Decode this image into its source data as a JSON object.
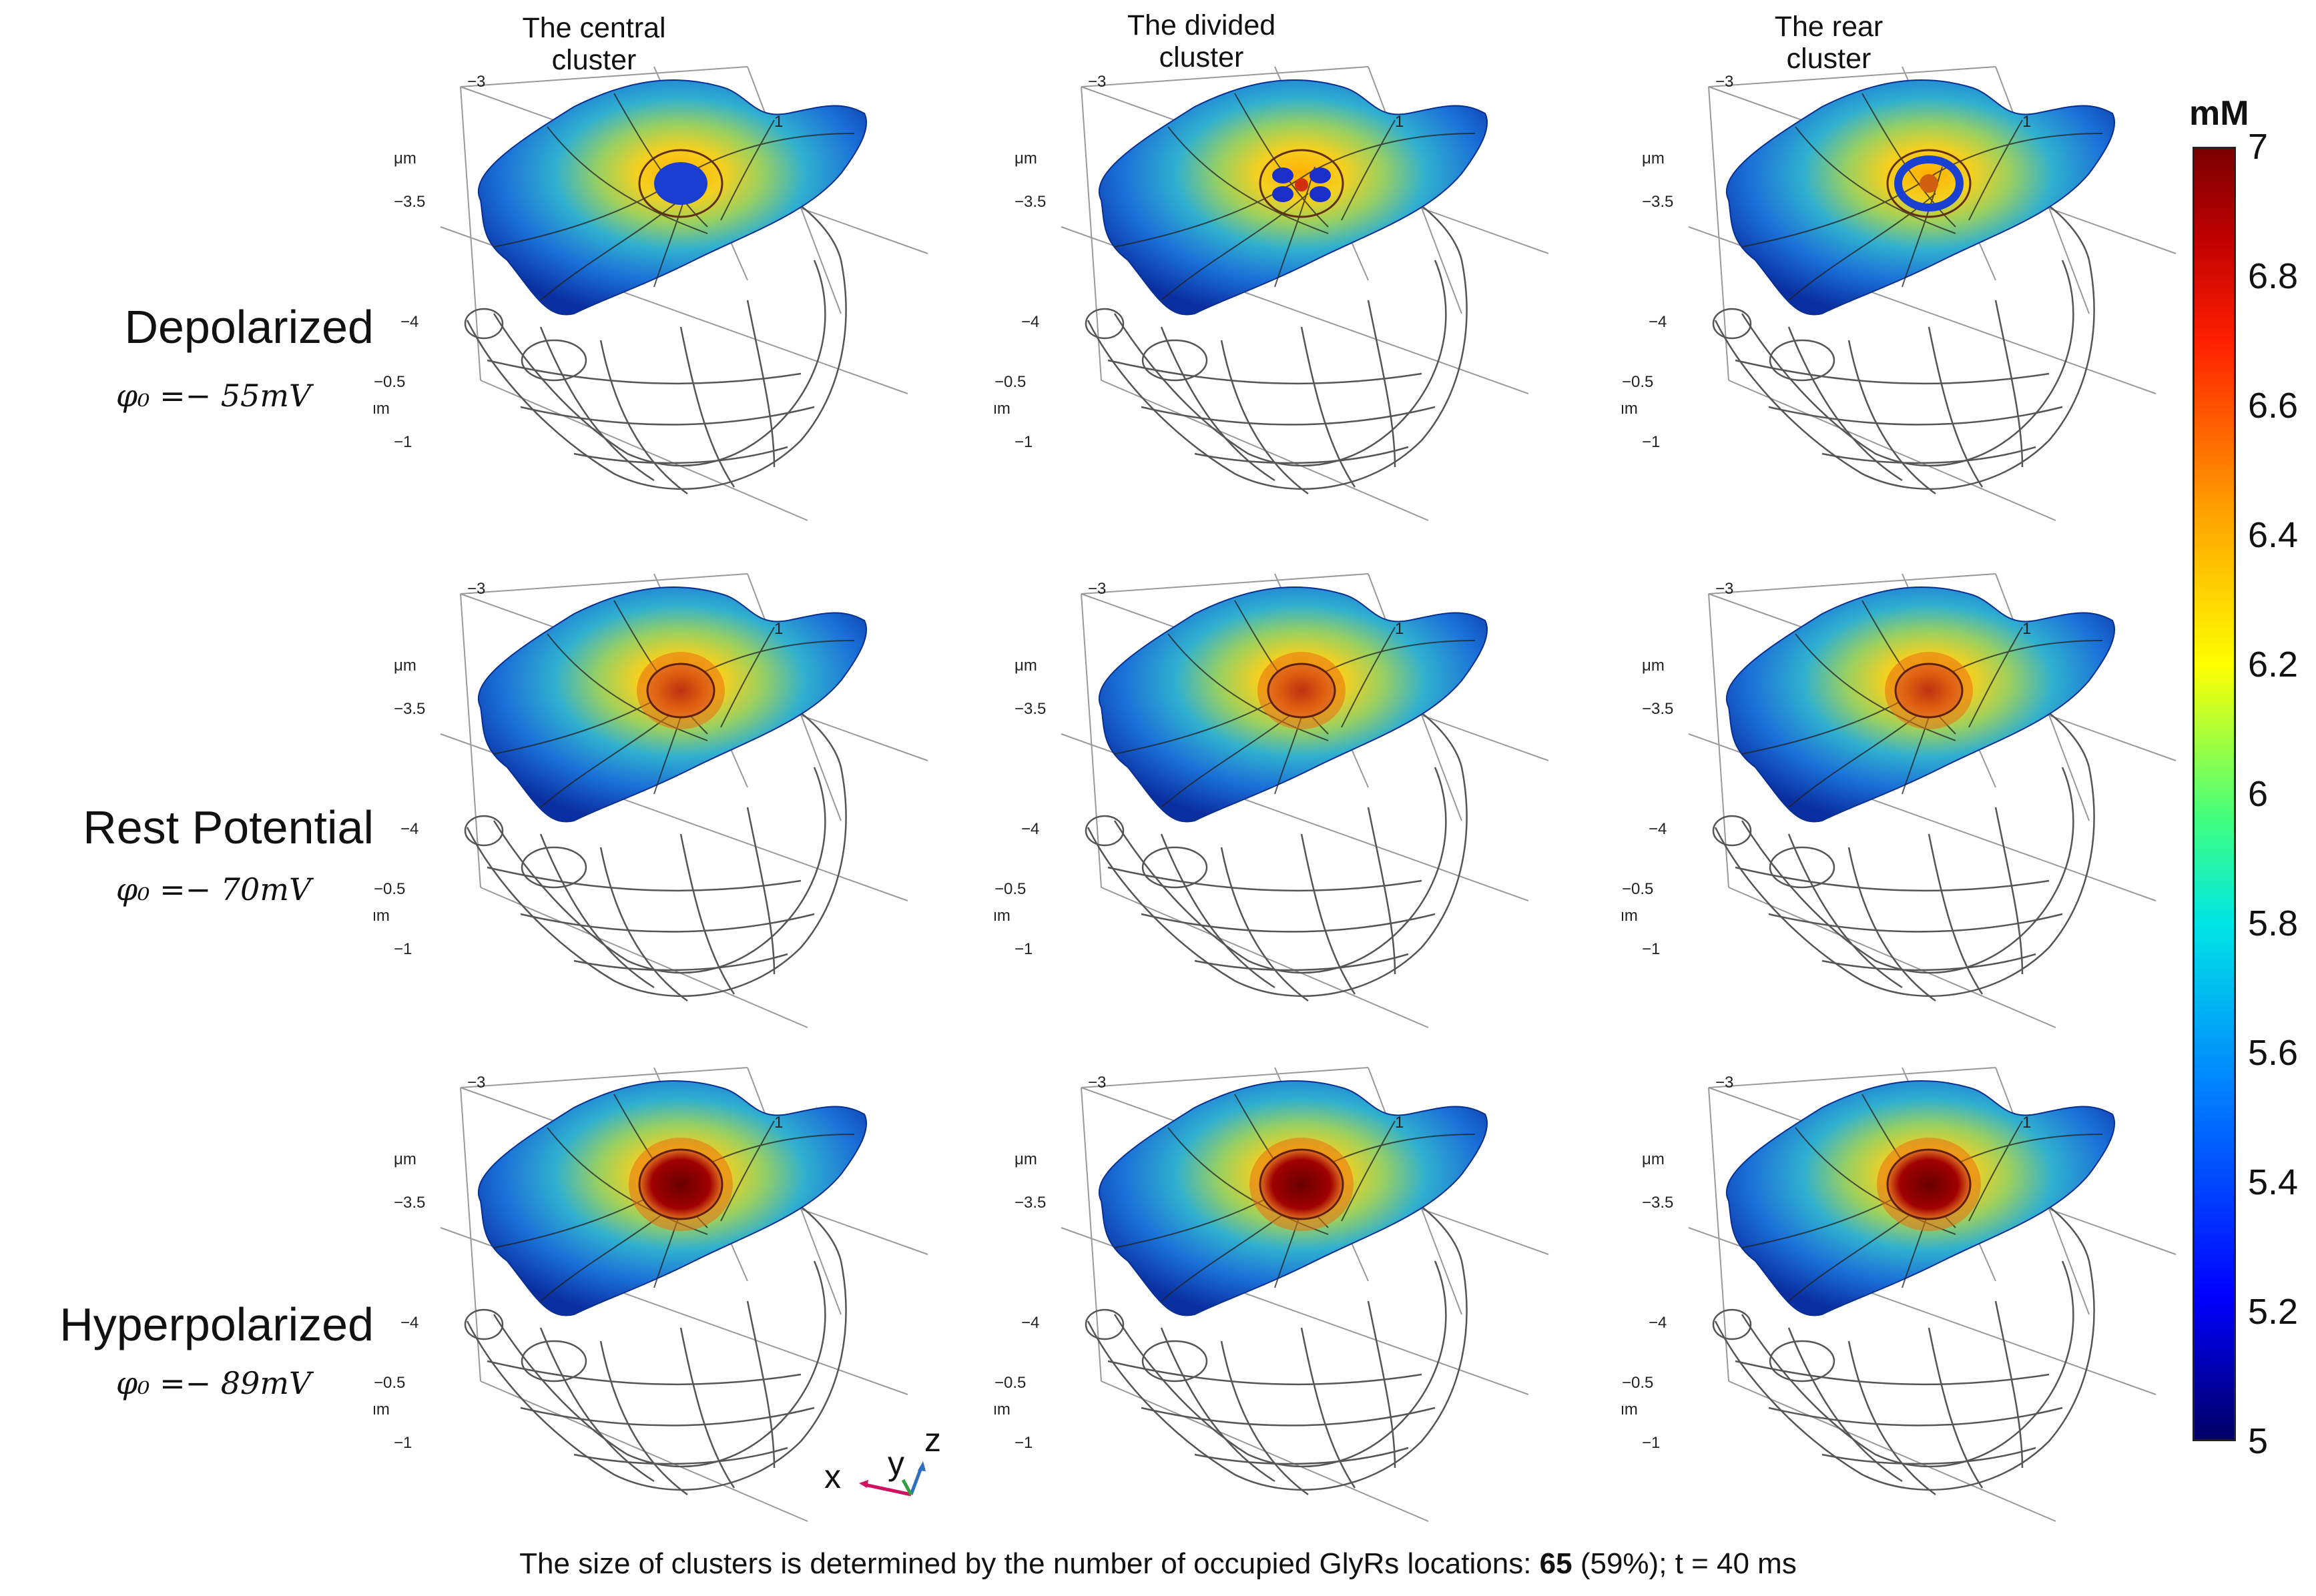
{
  "columns": [
    {
      "line1": "The central",
      "line2": "cluster"
    },
    {
      "line1": "The divided",
      "line2": "cluster"
    },
    {
      "line1": "The rear",
      "line2": "cluster"
    }
  ],
  "rows": [
    {
      "name": "Depolarized",
      "phi": "φ₀ =− 55mV"
    },
    {
      "name": "Rest Potential",
      "phi": "φ₀ =− 70mV"
    },
    {
      "name": "Hyperpolarized",
      "phi": "φ₀ =− 89mV"
    }
  ],
  "axis_labels": {
    "tick_neg3": "−3",
    "tick_neg3_5": "−3.5",
    "tick_neg4": "−4",
    "tick_1": "1",
    "tick_neg0_5": "−0.5",
    "tick_neg1": "−1",
    "unit": "μm"
  },
  "triad": {
    "x": "x",
    "y": "y",
    "z": "z"
  },
  "colorbar": {
    "unit": "mM",
    "ticks": [
      "7",
      "6.8",
      "6.6",
      "6.4",
      "6.2",
      "6",
      "5.8",
      "5.6",
      "5.4",
      "5.2",
      "5"
    ],
    "min": 5,
    "max": 7
  },
  "caption": {
    "prefix": "The size of clusters is determined by the number of occupied GlyRs locations:  ",
    "bold": "65",
    "suffix": " (59%); t = 40 ms"
  },
  "panels": [
    {
      "row": 0,
      "col": 0,
      "cluster": "central",
      "peak_level": "low"
    },
    {
      "row": 0,
      "col": 1,
      "cluster": "divided",
      "peak_level": "low"
    },
    {
      "row": 0,
      "col": 2,
      "cluster": "rear",
      "peak_level": "low"
    },
    {
      "row": 1,
      "col": 0,
      "cluster": "central",
      "peak_level": "mid"
    },
    {
      "row": 1,
      "col": 1,
      "cluster": "divided",
      "peak_level": "mid"
    },
    {
      "row": 1,
      "col": 2,
      "cluster": "rear",
      "peak_level": "mid"
    },
    {
      "row": 2,
      "col": 0,
      "cluster": "central",
      "peak_level": "high"
    },
    {
      "row": 2,
      "col": 1,
      "cluster": "divided",
      "peak_level": "high"
    },
    {
      "row": 2,
      "col": 2,
      "cluster": "rear",
      "peak_level": "high"
    }
  ]
}
